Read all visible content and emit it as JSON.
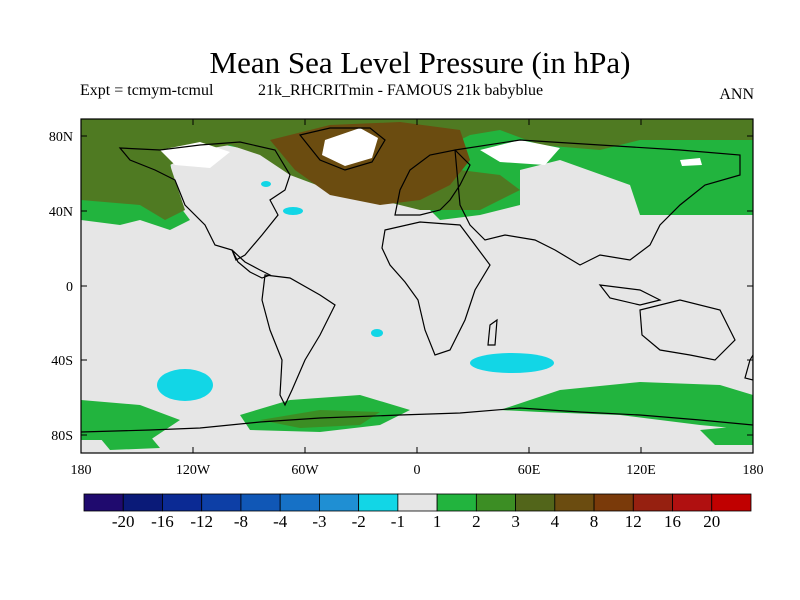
{
  "title": "Mean Sea Level Pressure (in hPa)",
  "subtitle_left": "Expt = tcmym-tcmul",
  "subtitle_mid": "21k_RHCRITmin - FAMOUS 21k babyblue",
  "subtitle_right": "ANN",
  "lat_labels": [
    "80N",
    "40N",
    "0",
    "40S",
    "80S"
  ],
  "lon_labels": [
    "180",
    "120W",
    "60W",
    "0",
    "60E",
    "120E",
    "180"
  ],
  "colorbar": {
    "colors": [
      "#1f0a6e",
      "#0a1a78",
      "#0b2a94",
      "#0d3fa6",
      "#1057b6",
      "#1671c6",
      "#1f8fd3",
      "#12d6e6",
      "#e6e6e6",
      "#22b43e",
      "#3c8e24",
      "#52651a",
      "#6b4c10",
      "#7a3a0a",
      "#962010",
      "#b01010",
      "#c00000"
    ],
    "labels": [
      "-20",
      "-16",
      "-12",
      "-8",
      "-4",
      "-3",
      "-2",
      "-1",
      "1",
      "2",
      "3",
      "4",
      "8",
      "12",
      "16",
      "20"
    ]
  },
  "colors": {
    "background": "#e6e6e6",
    "light_green": "#22b43e",
    "mid_green": "#3c8e24",
    "olive": "#5c6a20",
    "brown": "#6b4c10",
    "cyan": "#12d6e6",
    "white_patch": "#ffffff"
  }
}
